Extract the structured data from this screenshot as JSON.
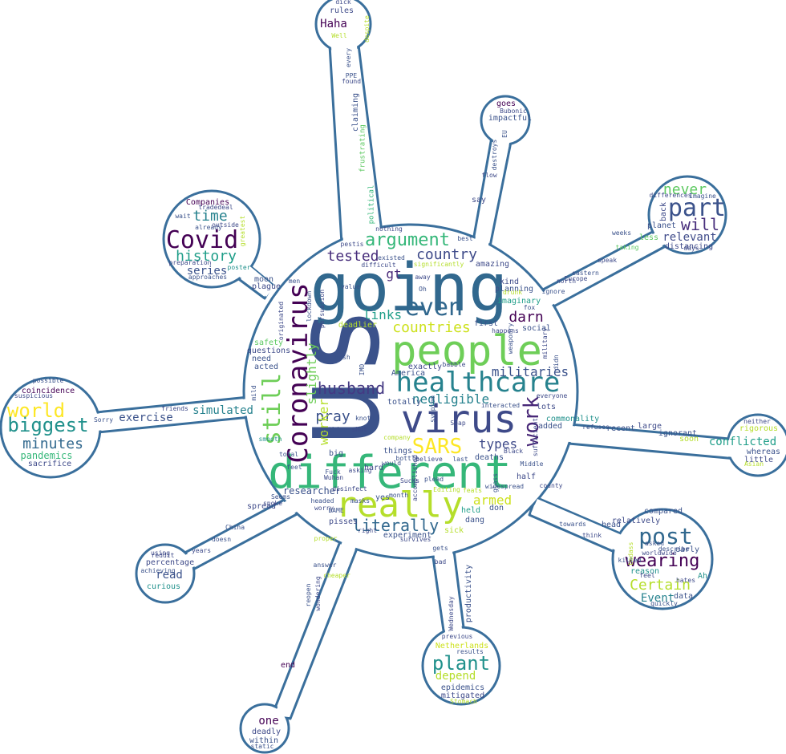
{
  "colors": {
    "outline": "#3a6f9c",
    "palette": [
      "#440154",
      "#3b528b",
      "#21918c",
      "#5ec962",
      "#fde725",
      "#472d7b",
      "#2c728e",
      "#28ae80",
      "#addc30"
    ]
  },
  "words": [
    {
      "text": "us",
      "color": "#3b528b"
    },
    {
      "text": "going",
      "color": "#31688e"
    },
    {
      "text": "different",
      "color": "#35b779"
    },
    {
      "text": "people",
      "color": "#6ece58"
    },
    {
      "text": "virus",
      "color": "#3e4a89"
    },
    {
      "text": "really",
      "color": "#b5de2b"
    },
    {
      "text": "healthcare",
      "color": "#26828e"
    },
    {
      "text": "Coronavirus",
      "color": "#440154"
    },
    {
      "text": "even",
      "color": "#31688e"
    },
    {
      "text": "argument",
      "color": "#35b779"
    },
    {
      "text": "work",
      "color": "#482878"
    },
    {
      "text": "still",
      "color": "#6ece58"
    },
    {
      "text": "SARS",
      "color": "#fde725"
    },
    {
      "text": "husband",
      "color": "#443983"
    },
    {
      "text": "literally",
      "color": "#31688e"
    },
    {
      "text": "countries",
      "color": "#cde11d"
    },
    {
      "text": "country",
      "color": "#3e4a89"
    },
    {
      "text": "tested",
      "color": "#472d7b"
    },
    {
      "text": "pray",
      "color": "#3b528b"
    },
    {
      "text": "darn",
      "color": "#440154"
    },
    {
      "text": "militaries",
      "color": "#3b528b"
    },
    {
      "text": "negligible",
      "color": "#26828e"
    },
    {
      "text": "armed",
      "color": "#cde11d"
    },
    {
      "text": "types",
      "color": "#3e4a89"
    },
    {
      "text": "links",
      "color": "#1f9e89"
    },
    {
      "text": "slightly",
      "color": "#6ece58"
    },
    {
      "text": "worker",
      "color": "#b5de2b"
    },
    {
      "text": "researcher",
      "color": "#3b528b"
    },
    {
      "text": "gt",
      "color": "#482878"
    },
    {
      "text": "Covid",
      "color": "#440154"
    },
    {
      "text": "history",
      "color": "#1f9e89"
    },
    {
      "text": "time",
      "color": "#26828e"
    },
    {
      "text": "series",
      "color": "#3b528b"
    },
    {
      "text": "Companies",
      "color": "#440154"
    },
    {
      "text": "world",
      "color": "#fde725"
    },
    {
      "text": "biggest",
      "color": "#21918c"
    },
    {
      "text": "minutes",
      "color": "#31688e"
    },
    {
      "text": "pandemics",
      "color": "#35b779"
    },
    {
      "text": "sacrifice",
      "color": "#3e4a89"
    },
    {
      "text": "coincidence",
      "color": "#440154"
    },
    {
      "text": "exercise",
      "color": "#3b528b"
    },
    {
      "text": "simulated",
      "color": "#26828e"
    },
    {
      "text": "Haha",
      "color": "#440154"
    },
    {
      "text": "rules",
      "color": "#3e4a89"
    },
    {
      "text": "claiming",
      "color": "#3b528b"
    },
    {
      "text": "frustrating",
      "color": "#5ec962"
    },
    {
      "text": "political",
      "color": "#35b779"
    },
    {
      "text": "part",
      "color": "#3b528b"
    },
    {
      "text": "will",
      "color": "#472d7b"
    },
    {
      "text": "never",
      "color": "#5ec962"
    },
    {
      "text": "relevant",
      "color": "#3e4a89"
    },
    {
      "text": "post",
      "color": "#31688e"
    },
    {
      "text": "wearing",
      "color": "#440154"
    },
    {
      "text": "Certain",
      "color": "#b5de2b"
    },
    {
      "text": "Event",
      "color": "#26828e"
    },
    {
      "text": "conflicted",
      "color": "#1f9e89"
    },
    {
      "text": "rigorous",
      "color": "#b5de2b"
    },
    {
      "text": "whereas",
      "color": "#3b528b"
    },
    {
      "text": "little",
      "color": "#3e4a89"
    },
    {
      "text": "plant",
      "color": "#21918c"
    },
    {
      "text": "depend",
      "color": "#b5de2b"
    },
    {
      "text": "epidemics",
      "color": "#3b528b"
    },
    {
      "text": "mitigated",
      "color": "#3e4a89"
    },
    {
      "text": "Netherlands",
      "color": "#cde11d"
    },
    {
      "text": "productivity",
      "color": "#3b528b"
    },
    {
      "text": "one",
      "color": "#440154"
    },
    {
      "text": "deadly",
      "color": "#3e4a89"
    },
    {
      "text": "within",
      "color": "#3b528b"
    },
    {
      "text": "end",
      "color": "#440154"
    },
    {
      "text": "read",
      "color": "#3b528b"
    },
    {
      "text": "curious",
      "color": "#21918c"
    },
    {
      "text": "percentage",
      "color": "#3e4a89"
    },
    {
      "text": "impactful",
      "color": "#3b528b"
    },
    {
      "text": "goes",
      "color": "#440154"
    },
    {
      "text": "say",
      "color": "#3e4a89"
    },
    {
      "text": "deadlier",
      "color": "#b5de2b"
    },
    {
      "text": "first",
      "color": "#3b528b"
    },
    {
      "text": "social",
      "color": "#3b528b"
    },
    {
      "text": "imaginary",
      "color": "#1f9e89"
    },
    {
      "text": "kind",
      "color": "#3e4a89"
    },
    {
      "text": "planning",
      "color": "#3b528b"
    },
    {
      "text": "amazing",
      "color": "#3e4a89"
    },
    {
      "text": "commonality",
      "color": "#21918c"
    },
    {
      "text": "added",
      "color": "#3b528b"
    },
    {
      "text": "lots",
      "color": "#3e4a89"
    },
    {
      "text": "deaths",
      "color": "#3b528b"
    },
    {
      "text": "half",
      "color": "#3e4a89"
    },
    {
      "text": "held",
      "color": "#1f9e89"
    },
    {
      "text": "don",
      "color": "#3b528b"
    },
    {
      "text": "dang",
      "color": "#3b528b"
    },
    {
      "text": "experiment",
      "color": "#3b528b"
    },
    {
      "text": "pisses",
      "color": "#3e4a89"
    },
    {
      "text": "totally",
      "color": "#3b528b"
    },
    {
      "text": "acted",
      "color": "#3b528b"
    },
    {
      "text": "need",
      "color": "#3b528b"
    },
    {
      "text": "safety",
      "color": "#5ec962"
    },
    {
      "text": "questions",
      "color": "#3e4a89"
    },
    {
      "text": "moon",
      "color": "#3b528b"
    },
    {
      "text": "plague",
      "color": "#3e4a89"
    },
    {
      "text": "things",
      "color": "#3b528b"
    },
    {
      "text": "exactly",
      "color": "#3e4a89"
    },
    {
      "text": "America",
      "color": "#3b528b"
    },
    {
      "text": "sick",
      "color": "#b5de2b"
    },
    {
      "text": "big",
      "color": "#3b528b"
    },
    {
      "text": "hard",
      "color": "#3e4a89"
    },
    {
      "text": "yes",
      "color": "#3b528b"
    },
    {
      "text": "spread",
      "color": "#3e4a89"
    },
    {
      "text": "recent",
      "color": "#3b528b"
    },
    {
      "text": "large",
      "color": "#3e4a89"
    },
    {
      "text": "ignorant",
      "color": "#3b528b"
    },
    {
      "text": "soon",
      "color": "#b5de2b"
    },
    {
      "text": "neither",
      "color": "#3e4a89"
    },
    {
      "text": "head",
      "color": "#3b528b"
    },
    {
      "text": "relatively",
      "color": "#3e4a89"
    },
    {
      "text": "compared",
      "color": "#3b528b"
    },
    {
      "text": "early",
      "color": "#3b528b"
    },
    {
      "text": "distancing",
      "color": "#3e4a89"
    },
    {
      "text": "planet",
      "color": "#3b528b"
    },
    {
      "text": "less",
      "color": "#5ec962"
    },
    {
      "text": "back",
      "color": "#3e4a89"
    },
    {
      "text": "reason",
      "color": "#21918c"
    },
    {
      "text": "feel",
      "color": "#3e4a89"
    },
    {
      "text": "Ah",
      "color": "#21918c"
    },
    {
      "text": "data",
      "color": "#3b528b"
    },
    {
      "text": "hates",
      "color": "#3e4a89"
    },
    {
      "text": "quickly",
      "color": "#3b528b"
    },
    {
      "text": "results",
      "color": "#3b528b"
    },
    {
      "text": "previous",
      "color": "#3e4a89"
    },
    {
      "text": "bottle",
      "color": "#3b528b"
    },
    {
      "text": "survives",
      "color": "#3e4a89"
    },
    {
      "text": "month",
      "color": "#3b528b"
    },
    {
      "text": "Sucks",
      "color": "#3e4a89"
    },
    {
      "text": "plead",
      "color": "#3b528b"
    },
    {
      "text": "already",
      "color": "#3b528b"
    },
    {
      "text": "outside",
      "color": "#3e4a89"
    },
    {
      "text": "greatest",
      "color": "#b5de2b"
    },
    {
      "text": "preparation",
      "color": "#3e4a89"
    },
    {
      "text": "approaches",
      "color": "#3b528b"
    },
    {
      "text": "poster",
      "color": "#21918c"
    },
    {
      "text": "mild",
      "color": "#3b528b"
    },
    {
      "text": "originated",
      "color": "#3e4a89"
    },
    {
      "text": "value",
      "color": "#3b528b"
    },
    {
      "text": "difficult",
      "color": "#3e4a89"
    },
    {
      "text": "significantly",
      "color": "#b5de2b"
    },
    {
      "text": "best",
      "color": "#3b528b"
    },
    {
      "text": "nothing",
      "color": "#3e4a89"
    },
    {
      "text": "existed",
      "color": "#3b528b"
    },
    {
      "text": "pestis",
      "color": "#3e4a89"
    },
    {
      "text": "gosh",
      "color": "#3b528b"
    },
    {
      "text": "IMO",
      "color": "#3b528b"
    },
    {
      "text": "anything",
      "color": "#3b528b"
    },
    {
      "text": "shut",
      "color": "#3e4a89"
    },
    {
      "text": "company",
      "color": "#b5de2b"
    },
    {
      "text": "total",
      "color": "#3b528b"
    },
    {
      "text": "asking",
      "color": "#3e4a89"
    },
    {
      "text": "Fuck",
      "color": "#3b528b"
    },
    {
      "text": "Wuhan",
      "color": "#3e4a89"
    },
    {
      "text": "masks",
      "color": "#3b528b"
    },
    {
      "text": "right",
      "color": "#3e4a89"
    },
    {
      "text": "headed",
      "color": "#3b528b"
    },
    {
      "text": "worry",
      "color": "#3e4a89"
    },
    {
      "text": "Seems",
      "color": "#3b528b"
    },
    {
      "text": "spoke",
      "color": "#3e4a89"
    },
    {
      "text": "China",
      "color": "#3b528b"
    },
    {
      "text": "years",
      "color": "#3e4a89"
    },
    {
      "text": "doesn",
      "color": "#3b528b"
    },
    {
      "text": "reddit",
      "color": "#3e4a89"
    },
    {
      "text": "achieving",
      "color": "#3b528b"
    },
    {
      "text": "using",
      "color": "#3e4a89"
    },
    {
      "text": "reopen",
      "color": "#3b528b"
    },
    {
      "text": "bad",
      "color": "#3e4a89"
    },
    {
      "text": "gets",
      "color": "#3b528b"
    },
    {
      "text": "Wednesday",
      "color": "#3e4a89"
    },
    {
      "text": "weaponry",
      "color": "#3b528b"
    },
    {
      "text": "military",
      "color": "#3e4a89"
    },
    {
      "text": "fox",
      "color": "#3b528b"
    },
    {
      "text": "north",
      "color": "#3e4a89"
    },
    {
      "text": "ignore",
      "color": "#3b528b"
    },
    {
      "text": "Europe",
      "color": "#3e4a89"
    },
    {
      "text": "eastern",
      "color": "#3b528b"
    },
    {
      "text": "speak",
      "color": "#3e4a89"
    },
    {
      "text": "taking",
      "color": "#5ec962"
    },
    {
      "text": "weeks",
      "color": "#3b528b"
    },
    {
      "text": "days",
      "color": "#3e4a89"
    },
    {
      "text": "Imagine",
      "color": "#3b528b"
    },
    {
      "text": "differences",
      "color": "#3e4a89"
    },
    {
      "text": "refuses",
      "color": "#3b528b"
    },
    {
      "text": "Asian",
      "color": "#b5de2b"
    },
    {
      "text": "describe",
      "color": "#3b528b"
    },
    {
      "text": "worldwide",
      "color": "#3e4a89"
    },
    {
      "text": "asked",
      "color": "#3b528b"
    },
    {
      "text": "think",
      "color": "#3e4a89"
    },
    {
      "text": "towards",
      "color": "#3b528b"
    },
    {
      "text": "county",
      "color": "#3e4a89"
    },
    {
      "text": "widespread",
      "color": "#3b528b"
    },
    {
      "text": "Black",
      "color": "#3e4a89"
    },
    {
      "text": "Middle",
      "color": "#3b528b"
    },
    {
      "text": "everyone",
      "color": "#3e4a89"
    },
    {
      "text": "didn",
      "color": "#3b528b"
    },
    {
      "text": "happens",
      "color": "#3e4a89"
    },
    {
      "text": "drunk",
      "color": "#b5de2b"
    },
    {
      "text": "Oh",
      "color": "#3b528b"
    },
    {
      "text": "away",
      "color": "#3e4a89"
    },
    {
      "text": "EU",
      "color": "#3b528b"
    },
    {
      "text": "Bubonic",
      "color": "#3e4a89"
    },
    {
      "text": "destroys",
      "color": "#3b528b"
    },
    {
      "text": "flow",
      "color": "#3e4a89"
    },
    {
      "text": "PPE",
      "color": "#3b528b"
    },
    {
      "text": "found",
      "color": "#3e4a89"
    },
    {
      "text": "every",
      "color": "#3b528b"
    },
    {
      "text": "Well",
      "color": "#b5de2b"
    },
    {
      "text": "despite",
      "color": "#b5de2b"
    },
    {
      "text": "dick",
      "color": "#3e4a89"
    },
    {
      "text": "lockdown",
      "color": "#3b528b"
    },
    {
      "text": "persuasion",
      "color": "#3e4a89"
    },
    {
      "text": "men",
      "color": "#3b528b"
    },
    {
      "text": "suspicious",
      "color": "#3e4a89"
    },
    {
      "text": "possible",
      "color": "#3b528b"
    },
    {
      "text": "Sorry",
      "color": "#3b528b"
    },
    {
      "text": "friends",
      "color": "#3e4a89"
    },
    {
      "text": "smooth",
      "color": "#21918c"
    },
    {
      "text": "wait",
      "color": "#3b528b"
    },
    {
      "text": "tradedeal",
      "color": "#3e4a89"
    },
    {
      "text": "static",
      "color": "#3b528b"
    },
    {
      "text": "Soap",
      "color": "#3e4a89"
    },
    {
      "text": "knots",
      "color": "#3b528b"
    },
    {
      "text": "babble",
      "color": "#3e4a89"
    },
    {
      "text": "interacted",
      "color": "#3b528b"
    },
    {
      "text": "Editing",
      "color": "#b5de2b"
    },
    {
      "text": "feats",
      "color": "#b5de2b"
    },
    {
      "text": "BAME",
      "color": "#3b528b"
    },
    {
      "text": "believe",
      "color": "#3e4a89"
    },
    {
      "text": "last",
      "color": "#3b528b"
    },
    {
      "text": "accomplished",
      "color": "#3e4a89"
    },
    {
      "text": "would",
      "color": "#3b528b"
    },
    {
      "text": "disinfect",
      "color": "#3e4a89"
    },
    {
      "text": "feet",
      "color": "#3b528b"
    },
    {
      "text": "badass",
      "color": "#b5de2b"
    },
    {
      "text": "killed",
      "color": "#3b528b"
    },
    {
      "text": "Stomach",
      "color": "#b5de2b"
    },
    {
      "text": "wondering",
      "color": "#3e4a89"
    },
    {
      "text": "answer",
      "color": "#3b528b"
    },
    {
      "text": "cheaper",
      "color": "#b5de2b"
    },
    {
      "text": "proper",
      "color": "#b5de2b"
    },
    {
      "text": "glass",
      "color": "#3b528b"
    },
    {
      "text": "sufficient",
      "color": "#3e4a89"
    },
    {
      "text": "symptom",
      "color": "#3b528b"
    }
  ]
}
